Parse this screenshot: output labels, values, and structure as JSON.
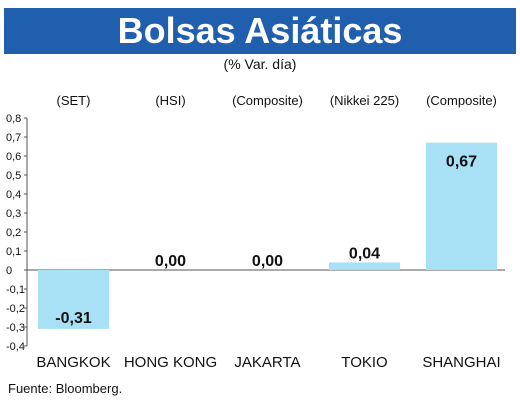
{
  "header": {
    "title": "Bolsas Asiáticas",
    "subtitle": "(% Var. día)"
  },
  "source": "Fuente: Bloomberg.",
  "colors": {
    "banner": "#1f5fae",
    "bar": "#a8e0f5",
    "axis": "#555555"
  },
  "chart_data": {
    "type": "bar",
    "categories": [
      "BANGKOK",
      "HONG KONG",
      "JAKARTA",
      "TOKIO",
      "SHANGHAI"
    ],
    "indices": [
      "(SET)",
      "(HSI)",
      "(Composite)",
      "(Nikkei 225)",
      "(Composite)"
    ],
    "values": [
      -0.31,
      0.0,
      0.0,
      0.04,
      0.67
    ],
    "data_labels": [
      "-0,31",
      "0,00",
      "0,00",
      "0,04",
      "0,67"
    ],
    "yticks": [
      "0,8",
      "0,7",
      "0,6",
      "0,5",
      "0,4",
      "0,3",
      "0,2",
      "0,1",
      "0",
      "-0,1",
      "-0,2",
      "-0,3",
      "-0,4"
    ],
    "ylim": [
      -0.4,
      0.8
    ],
    "grid": false
  }
}
